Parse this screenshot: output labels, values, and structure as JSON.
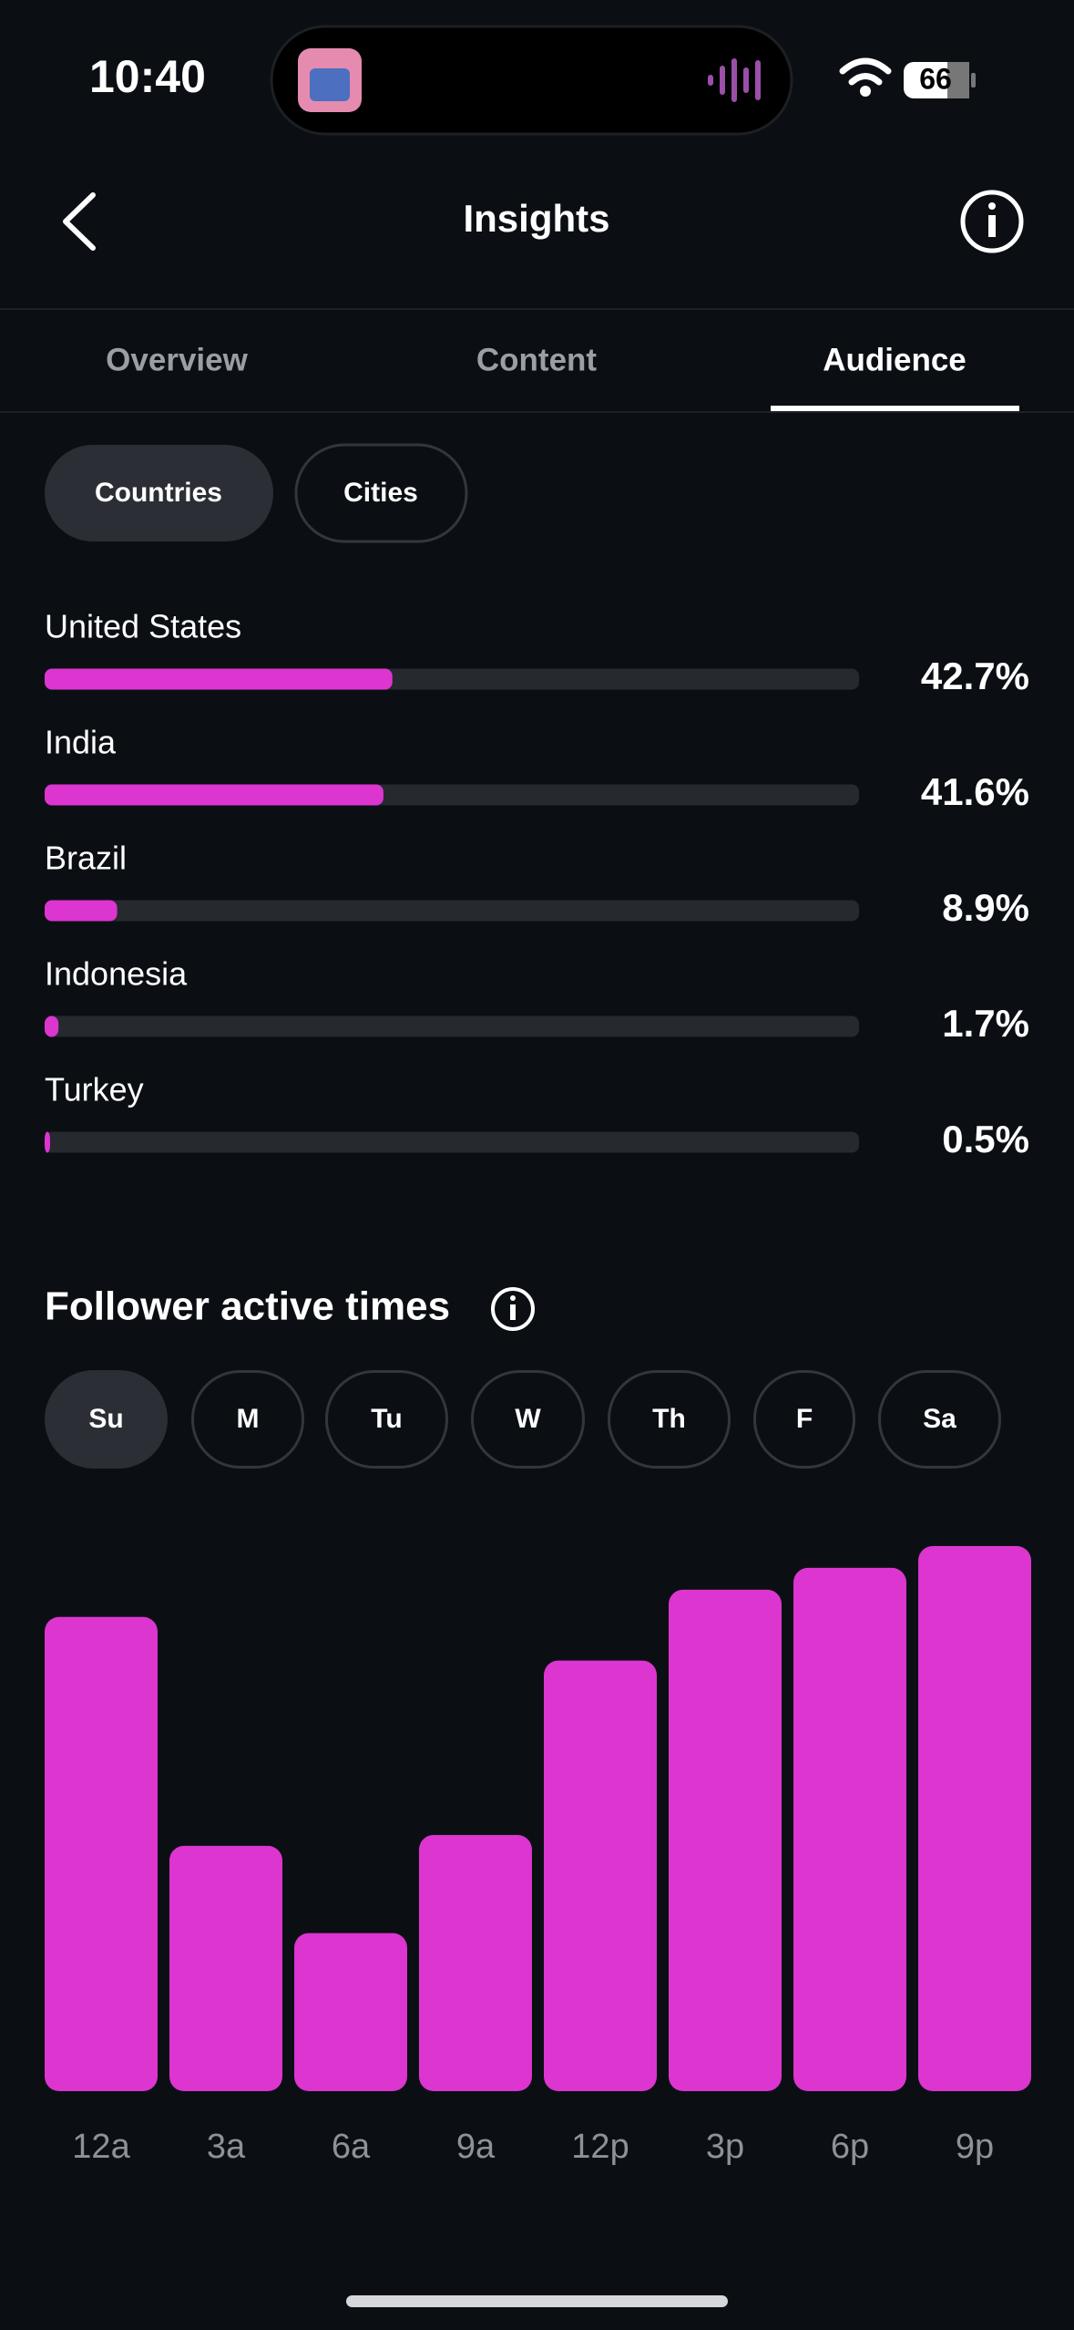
{
  "status_bar": {
    "time": "10:40",
    "battery": "66"
  },
  "header": {
    "title": "Insights"
  },
  "tabs": [
    "Overview",
    "Content",
    "Audience"
  ],
  "filters": [
    "Countries",
    "Cities"
  ],
  "countries": {
    "categories": [
      "United States",
      "India",
      "Brazil",
      "Indonesia",
      "Turkey"
    ],
    "values": [
      42.7,
      41.6,
      8.9,
      1.7,
      0.5
    ],
    "value_labels": [
      "42.7%",
      "41.6%",
      "8.9%",
      "1.7%",
      "0.5%"
    ],
    "color": "#dc35d0"
  },
  "active_times": {
    "title": "Follower active times",
    "days": [
      "Su",
      "M",
      "Tu",
      "W",
      "Th",
      "F",
      "Sa"
    ],
    "categories": [
      "12a",
      "3a",
      "6a",
      "9a",
      "12p",
      "3p",
      "6p",
      "9p"
    ],
    "values": [
      87,
      45,
      29,
      47,
      79,
      92,
      96,
      100
    ],
    "color": "#dc35d0"
  }
}
